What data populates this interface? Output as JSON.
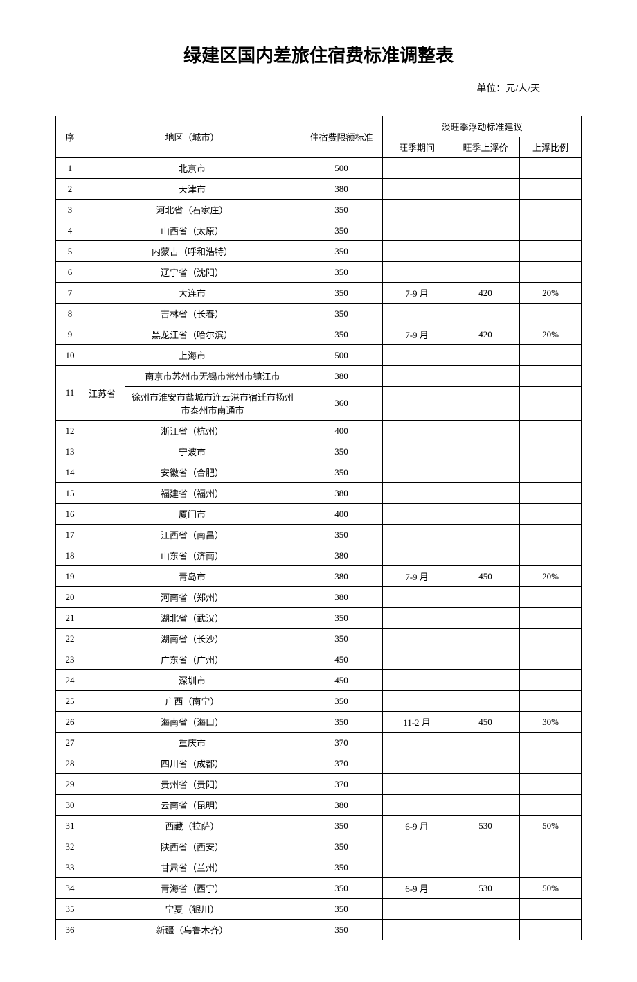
{
  "title": "绿建区国内差旅住宿费标准调整表",
  "unit_label": "单位：元/人/天",
  "columns": {
    "seq": "序",
    "region": "地区（城市）",
    "standard": "住宿费限额标准",
    "float_header": "淡旺季浮动标准建议",
    "peak_period": "旺季期间",
    "peak_uplift": "旺季上浮价",
    "uplift_ratio": "上浮比例"
  },
  "rows": [
    {
      "seq": "1",
      "region": "北京市",
      "standard": "500",
      "period": "",
      "uplift": "",
      "ratio": ""
    },
    {
      "seq": "2",
      "region": "天津市",
      "standard": "380",
      "period": "",
      "uplift": "",
      "ratio": ""
    },
    {
      "seq": "3",
      "region": "河北省（石家庄）",
      "standard": "350",
      "period": "",
      "uplift": "",
      "ratio": ""
    },
    {
      "seq": "4",
      "region": "山西省（太原）",
      "standard": "350",
      "period": "",
      "uplift": "",
      "ratio": ""
    },
    {
      "seq": "5",
      "region": "内蒙古（呼和浩特）",
      "standard": "350",
      "period": "",
      "uplift": "",
      "ratio": ""
    },
    {
      "seq": "6",
      "region": "辽宁省（沈阳）",
      "standard": "350",
      "period": "",
      "uplift": "",
      "ratio": ""
    },
    {
      "seq": "7",
      "region": "大连市",
      "standard": "350",
      "period": "7-9 月",
      "uplift": "420",
      "ratio": "20%"
    },
    {
      "seq": "8",
      "region": "吉林省（长春）",
      "standard": "350",
      "period": "",
      "uplift": "",
      "ratio": ""
    },
    {
      "seq": "9",
      "region": "黑龙江省（哈尔滨）",
      "standard": "350",
      "period": "7-9 月",
      "uplift": "420",
      "ratio": "20%"
    },
    {
      "seq": "10",
      "region": "上海市",
      "standard": "500",
      "period": "",
      "uplift": "",
      "ratio": ""
    }
  ],
  "row11": {
    "seq": "11",
    "province": "江苏省",
    "sub_a": "南京市苏州市无锡市常州市镇江市",
    "std_a": "380",
    "sub_b": "徐州市淮安市盐城市连云港市宿迁市扬州市泰州市南通市",
    "std_b": "360"
  },
  "rows_tail": [
    {
      "seq": "12",
      "region": "浙江省（杭州）",
      "standard": "400",
      "period": "",
      "uplift": "",
      "ratio": ""
    },
    {
      "seq": "13",
      "region": "宁波市",
      "standard": "350",
      "period": "",
      "uplift": "",
      "ratio": ""
    },
    {
      "seq": "14",
      "region": "安徽省（合肥）",
      "standard": "350",
      "period": "",
      "uplift": "",
      "ratio": ""
    },
    {
      "seq": "15",
      "region": "福建省（福州）",
      "standard": "380",
      "period": "",
      "uplift": "",
      "ratio": ""
    },
    {
      "seq": "16",
      "region": "厦门市",
      "standard": "400",
      "period": "",
      "uplift": "",
      "ratio": ""
    },
    {
      "seq": "17",
      "region": "江西省（南昌）",
      "standard": "350",
      "period": "",
      "uplift": "",
      "ratio": ""
    },
    {
      "seq": "18",
      "region": "山东省（济南）",
      "standard": "380",
      "period": "",
      "uplift": "",
      "ratio": ""
    },
    {
      "seq": "19",
      "region": "青岛市",
      "standard": "380",
      "period": "7-9 月",
      "uplift": "450",
      "ratio": "20%"
    },
    {
      "seq": "20",
      "region": "河南省（郑州）",
      "standard": "380",
      "period": "",
      "uplift": "",
      "ratio": ""
    },
    {
      "seq": "21",
      "region": "湖北省（武汉）",
      "standard": "350",
      "period": "",
      "uplift": "",
      "ratio": ""
    },
    {
      "seq": "22",
      "region": "湖南省（长沙）",
      "standard": "350",
      "period": "",
      "uplift": "",
      "ratio": ""
    },
    {
      "seq": "23",
      "region": "广东省（广州）",
      "standard": "450",
      "period": "",
      "uplift": "",
      "ratio": ""
    },
    {
      "seq": "24",
      "region": "深圳市",
      "standard": "450",
      "period": "",
      "uplift": "",
      "ratio": ""
    },
    {
      "seq": "25",
      "region": "广西（南宁）",
      "standard": "350",
      "period": "",
      "uplift": "",
      "ratio": ""
    },
    {
      "seq": "26",
      "region": "海南省（海口）",
      "standard": "350",
      "period": "11-2 月",
      "uplift": "450",
      "ratio": "30%"
    },
    {
      "seq": "27",
      "region": "重庆市",
      "standard": "370",
      "period": "",
      "uplift": "",
      "ratio": ""
    },
    {
      "seq": "28",
      "region": "四川省（成都）",
      "standard": "370",
      "period": "",
      "uplift": "",
      "ratio": ""
    },
    {
      "seq": "29",
      "region": "贵州省（贵阳）",
      "standard": "370",
      "period": "",
      "uplift": "",
      "ratio": ""
    },
    {
      "seq": "30",
      "region": "云南省（昆明）",
      "standard": "380",
      "period": "",
      "uplift": "",
      "ratio": ""
    },
    {
      "seq": "31",
      "region": "西藏（拉萨）",
      "standard": "350",
      "period": "6-9 月",
      "uplift": "530",
      "ratio": "50%"
    },
    {
      "seq": "32",
      "region": "陕西省（西安）",
      "standard": "350",
      "period": "",
      "uplift": "",
      "ratio": ""
    },
    {
      "seq": "33",
      "region": "甘肃省（兰州）",
      "standard": "350",
      "period": "",
      "uplift": "",
      "ratio": ""
    },
    {
      "seq": "34",
      "region": "青海省（西宁）",
      "standard": "350",
      "period": "6-9 月",
      "uplift": "530",
      "ratio": "50%"
    },
    {
      "seq": "35",
      "region": "宁夏（银川）",
      "standard": "350",
      "period": "",
      "uplift": "",
      "ratio": ""
    },
    {
      "seq": "36",
      "region": "新疆（乌鲁木齐）",
      "standard": "350",
      "period": "",
      "uplift": "",
      "ratio": ""
    }
  ],
  "style": {
    "background_color": "#ffffff",
    "border_color": "#000000",
    "title_fontsize": 26,
    "body_fontsize": 13
  }
}
